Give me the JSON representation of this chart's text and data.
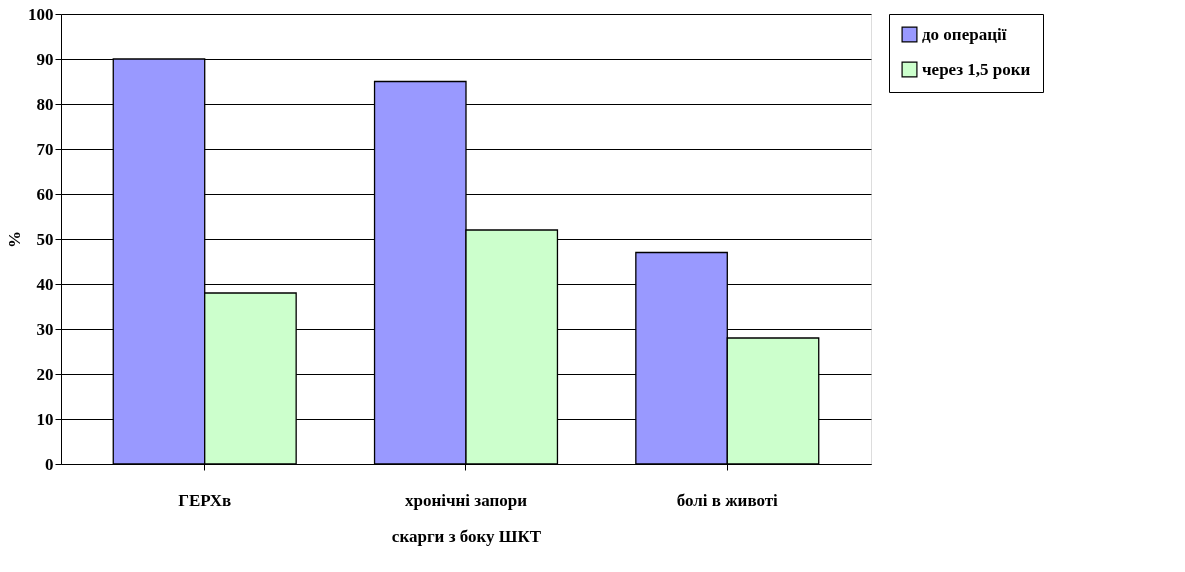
{
  "chart_data": {
    "type": "bar",
    "xlabel": "скарги з боку ШКТ",
    "ylabel": "%",
    "categories": [
      "ГЕРХв",
      "хронічні запори",
      "болі в животі"
    ],
    "series": [
      {
        "name": "до операції",
        "color": "#9999ff",
        "values": [
          90,
          85,
          47
        ]
      },
      {
        "name": "через 1,5 роки",
        "color": "#ccffcc",
        "values": [
          38,
          52,
          28
        ]
      }
    ],
    "ylim": [
      0,
      100
    ],
    "yticks": [
      0,
      10,
      20,
      30,
      40,
      50,
      60,
      70,
      80,
      90,
      100
    ],
    "grid": "y",
    "legend": "right"
  }
}
